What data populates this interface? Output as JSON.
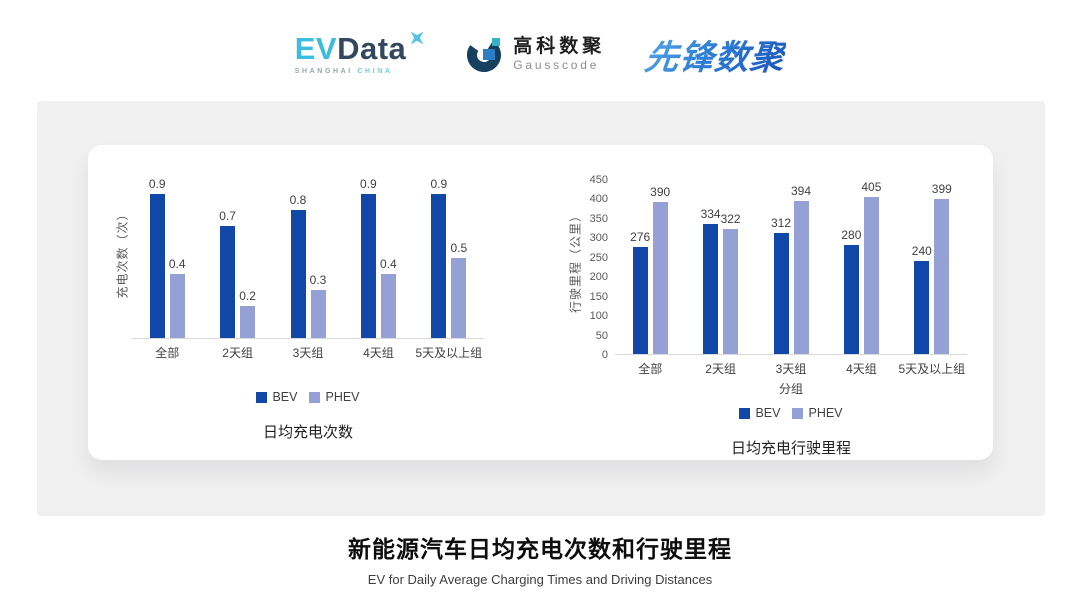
{
  "header": {
    "evdata": {
      "ev": "EV",
      "data": "Data",
      "sub_left": "SHANGHAI",
      "sub_right": "CHINA"
    },
    "gausscode": {
      "cn": "高科数聚",
      "en": "Gausscode"
    },
    "pioneer": {
      "text": "先锋数聚"
    }
  },
  "colors": {
    "bev": "#1148a8",
    "phev": "#95a0d4",
    "axis_line": "#d9d9d9",
    "tick_text": "#595959",
    "label_text": "#404040"
  },
  "chart_data": [
    {
      "type": "bar",
      "title": "日均充电次数",
      "ylabel": "充电次数（次）",
      "xlabel": "",
      "categories": [
        "全部",
        "2天组",
        "3天组",
        "4天组",
        "5天及以上组"
      ],
      "series": [
        {
          "name": "BEV",
          "values": [
            0.9,
            0.7,
            0.8,
            0.9,
            0.9
          ]
        },
        {
          "name": "PHEV",
          "values": [
            0.4,
            0.2,
            0.3,
            0.4,
            0.5
          ]
        }
      ],
      "ylim": [
        0,
        1.0
      ],
      "yticks": [],
      "value_decimals": 1,
      "grid": false,
      "legend_position": "bottom"
    },
    {
      "type": "bar",
      "title": "日均充电行驶里程",
      "ylabel": "行驶里程（公里）",
      "xlabel": "分组",
      "categories": [
        "全部",
        "2天组",
        "3天组",
        "4天组",
        "5天及以上组"
      ],
      "series": [
        {
          "name": "BEV",
          "values": [
            276,
            334,
            312,
            280,
            240
          ]
        },
        {
          "name": "PHEV",
          "values": [
            390,
            322,
            394,
            405,
            399
          ]
        }
      ],
      "ylim": [
        0,
        450
      ],
      "yticks": [
        450,
        400,
        350,
        300,
        250,
        200,
        150,
        100,
        50,
        0
      ],
      "value_decimals": 0,
      "grid": false,
      "legend_position": "bottom"
    }
  ],
  "footer": {
    "title": "新能源汽车日均充电次数和行驶里程",
    "subtitle": "EV for Daily Average Charging Times and Driving Distances"
  }
}
